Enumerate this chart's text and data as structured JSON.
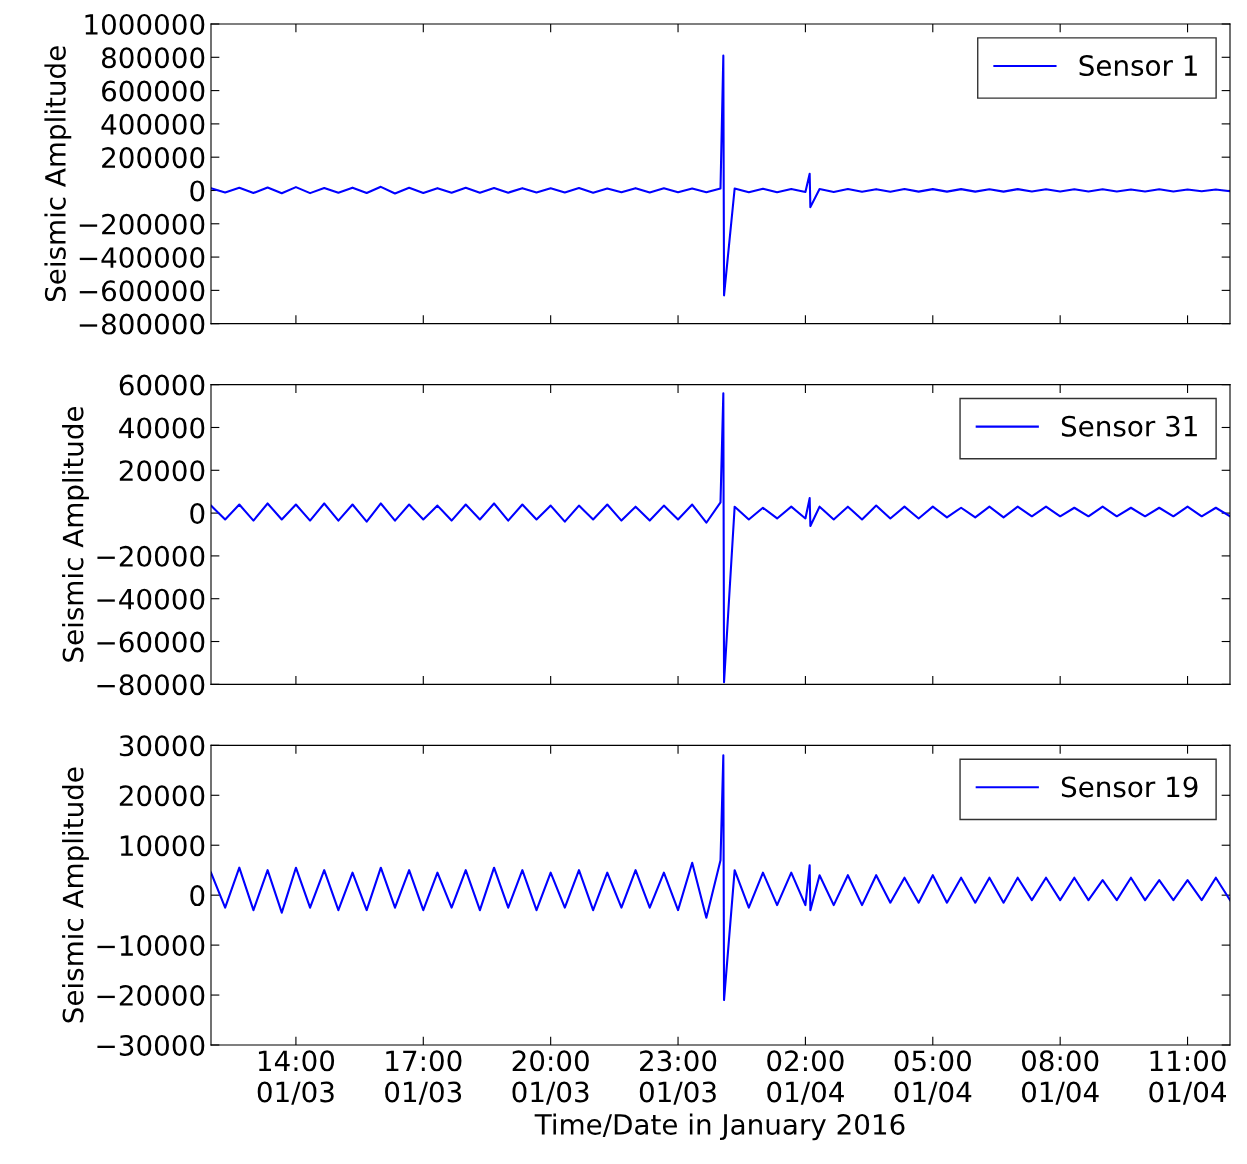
{
  "chart_data": [
    {
      "type": "line",
      "ylabel": "Seismic Amplitude",
      "legend": "top right",
      "grid": false,
      "tick_labels": "y",
      "x": [
        "2016-01-03T12:00",
        "2016-01-03T12:20",
        "2016-01-03T12:40",
        "2016-01-03T13:00",
        "2016-01-03T13:20",
        "2016-01-03T13:40",
        "2016-01-03T14:00",
        "2016-01-03T14:20",
        "2016-01-03T14:40",
        "2016-01-03T15:00",
        "2016-01-03T15:20",
        "2016-01-03T15:40",
        "2016-01-03T16:00",
        "2016-01-03T16:20",
        "2016-01-03T16:40",
        "2016-01-03T17:00",
        "2016-01-03T17:20",
        "2016-01-03T17:40",
        "2016-01-03T18:00",
        "2016-01-03T18:20",
        "2016-01-03T18:40",
        "2016-01-03T19:00",
        "2016-01-03T19:20",
        "2016-01-03T19:40",
        "2016-01-03T20:00",
        "2016-01-03T20:20",
        "2016-01-03T20:40",
        "2016-01-03T21:00",
        "2016-01-03T21:20",
        "2016-01-03T21:40",
        "2016-01-03T22:00",
        "2016-01-03T22:20",
        "2016-01-03T22:40",
        "2016-01-03T23:00",
        "2016-01-03T23:20",
        "2016-01-03T23:40",
        "2016-01-04T00:00",
        "2016-01-04T00:04",
        "2016-01-04T00:05",
        "2016-01-04T00:20",
        "2016-01-04T00:40",
        "2016-01-04T01:00",
        "2016-01-04T01:20",
        "2016-01-04T01:40",
        "2016-01-04T02:00",
        "2016-01-04T02:06",
        "2016-01-04T02:07",
        "2016-01-04T02:20",
        "2016-01-04T02:40",
        "2016-01-04T03:00",
        "2016-01-04T03:20",
        "2016-01-04T03:40",
        "2016-01-04T04:00",
        "2016-01-04T04:20",
        "2016-01-04T04:40",
        "2016-01-04T05:00",
        "2016-01-04T05:20",
        "2016-01-04T05:40",
        "2016-01-04T06:00",
        "2016-01-04T06:20",
        "2016-01-04T06:40",
        "2016-01-04T07:00",
        "2016-01-04T07:20",
        "2016-01-04T07:40",
        "2016-01-04T08:00",
        "2016-01-04T08:20",
        "2016-01-04T08:40",
        "2016-01-04T09:00",
        "2016-01-04T09:20",
        "2016-01-04T09:40",
        "2016-01-04T10:00",
        "2016-01-04T10:20",
        "2016-01-04T10:40",
        "2016-01-04T11:00",
        "2016-01-04T11:20",
        "2016-01-04T11:40",
        "2016-01-04T12:00"
      ],
      "xlim": [
        "2016-01-03T12:00",
        "2016-01-04T12:00"
      ],
      "xticks": [
        {
          "value": "2016-01-03T14:00",
          "label": null
        },
        {
          "value": "2016-01-03T17:00",
          "label": null
        },
        {
          "value": "2016-01-03T20:00",
          "label": null
        },
        {
          "value": "2016-01-03T23:00",
          "label": null
        },
        {
          "value": "2016-01-04T02:00",
          "label": null
        },
        {
          "value": "2016-01-04T05:00",
          "label": null
        },
        {
          "value": "2016-01-04T08:00",
          "label": null
        },
        {
          "value": "2016-01-04T11:00",
          "label": null
        }
      ],
      "ylim": [
        -800000,
        1000000
      ],
      "yticks": [
        {
          "value": -800000,
          "label": "−800000"
        },
        {
          "value": -600000,
          "label": "−600000"
        },
        {
          "value": -400000,
          "label": "−400000"
        },
        {
          "value": -200000,
          "label": "−200000"
        },
        0,
        200000,
        400000,
        600000,
        800000,
        1000000
      ],
      "series": [
        {
          "name": "Sensor 1",
          "color": "#0000ff",
          "values": [
            14000,
            -12000,
            16000,
            -15000,
            18000,
            -17000,
            20000,
            -16000,
            15000,
            -14000,
            17000,
            -15000,
            22000,
            -18000,
            16000,
            -15000,
            14000,
            -13000,
            16000,
            -14000,
            15000,
            -13000,
            14000,
            -12000,
            13000,
            -12000,
            15000,
            -13000,
            12000,
            -11000,
            14000,
            -12000,
            13000,
            -11000,
            12000,
            -10000,
            12000,
            810000,
            -630000,
            12000,
            -11000,
            10000,
            -10000,
            9000,
            -9000,
            100000,
            -100000,
            9000,
            -9000,
            9000,
            -8000,
            8000,
            -8000,
            9000,
            -7000,
            8000,
            -7000,
            8000,
            -7000,
            7000,
            -7000,
            8000,
            -6000,
            7000,
            -6000,
            7000,
            -6000,
            7000,
            -6000,
            6000,
            -6000,
            7000,
            -6000,
            6000,
            -5000,
            6000,
            -5000
          ]
        }
      ]
    },
    {
      "type": "line",
      "ylabel": "Seismic Amplitude",
      "legend": "top right",
      "grid": false,
      "tick_labels": "y",
      "x": [
        "2016-01-03T12:00",
        "2016-01-03T12:20",
        "2016-01-03T12:40",
        "2016-01-03T13:00",
        "2016-01-03T13:20",
        "2016-01-03T13:40",
        "2016-01-03T14:00",
        "2016-01-03T14:20",
        "2016-01-03T14:40",
        "2016-01-03T15:00",
        "2016-01-03T15:20",
        "2016-01-03T15:40",
        "2016-01-03T16:00",
        "2016-01-03T16:20",
        "2016-01-03T16:40",
        "2016-01-03T17:00",
        "2016-01-03T17:20",
        "2016-01-03T17:40",
        "2016-01-03T18:00",
        "2016-01-03T18:20",
        "2016-01-03T18:40",
        "2016-01-03T19:00",
        "2016-01-03T19:20",
        "2016-01-03T19:40",
        "2016-01-03T20:00",
        "2016-01-03T20:20",
        "2016-01-03T20:40",
        "2016-01-03T21:00",
        "2016-01-03T21:20",
        "2016-01-03T21:40",
        "2016-01-03T22:00",
        "2016-01-03T22:20",
        "2016-01-03T22:40",
        "2016-01-03T23:00",
        "2016-01-03T23:20",
        "2016-01-03T23:40",
        "2016-01-04T00:00",
        "2016-01-04T00:04",
        "2016-01-04T00:05",
        "2016-01-04T00:20",
        "2016-01-04T00:40",
        "2016-01-04T01:00",
        "2016-01-04T01:20",
        "2016-01-04T01:40",
        "2016-01-04T02:00",
        "2016-01-04T02:06",
        "2016-01-04T02:07",
        "2016-01-04T02:20",
        "2016-01-04T02:40",
        "2016-01-04T03:00",
        "2016-01-04T03:20",
        "2016-01-04T03:40",
        "2016-01-04T04:00",
        "2016-01-04T04:20",
        "2016-01-04T04:40",
        "2016-01-04T05:00",
        "2016-01-04T05:20",
        "2016-01-04T05:40",
        "2016-01-04T06:00",
        "2016-01-04T06:20",
        "2016-01-04T06:40",
        "2016-01-04T07:00",
        "2016-01-04T07:20",
        "2016-01-04T07:40",
        "2016-01-04T08:00",
        "2016-01-04T08:20",
        "2016-01-04T08:40",
        "2016-01-04T09:00",
        "2016-01-04T09:20",
        "2016-01-04T09:40",
        "2016-01-04T10:00",
        "2016-01-04T10:20",
        "2016-01-04T10:40",
        "2016-01-04T11:00",
        "2016-01-04T11:20",
        "2016-01-04T11:40",
        "2016-01-04T12:00"
      ],
      "xlim": [
        "2016-01-03T12:00",
        "2016-01-04T12:00"
      ],
      "xticks": [
        {
          "value": "2016-01-03T14:00",
          "label": null
        },
        {
          "value": "2016-01-03T17:00",
          "label": null
        },
        {
          "value": "2016-01-03T20:00",
          "label": null
        },
        {
          "value": "2016-01-03T23:00",
          "label": null
        },
        {
          "value": "2016-01-04T02:00",
          "label": null
        },
        {
          "value": "2016-01-04T05:00",
          "label": null
        },
        {
          "value": "2016-01-04T08:00",
          "label": null
        },
        {
          "value": "2016-01-04T11:00",
          "label": null
        }
      ],
      "ylim": [
        -80000,
        60000
      ],
      "yticks": [
        {
          "value": -80000,
          "label": "−80000"
        },
        {
          "value": -60000,
          "label": "−60000"
        },
        {
          "value": -40000,
          "label": "−40000"
        },
        {
          "value": -20000,
          "label": "−20000"
        },
        0,
        20000,
        40000,
        60000
      ],
      "series": [
        {
          "name": "Sensor 31",
          "color": "#0000ff",
          "values": [
            3500,
            -3000,
            4000,
            -3500,
            4500,
            -3000,
            4000,
            -3500,
            4500,
            -3500,
            4000,
            -4000,
            4500,
            -3500,
            4000,
            -3000,
            3500,
            -3500,
            4000,
            -3000,
            4500,
            -3500,
            4000,
            -3000,
            3500,
            -4000,
            3500,
            -3000,
            4000,
            -3500,
            3000,
            -3500,
            3500,
            -3000,
            4000,
            -4500,
            5000,
            56000,
            -79000,
            3000,
            -3000,
            2500,
            -2500,
            3000,
            -2500,
            7000,
            -6000,
            3000,
            -3000,
            3000,
            -3000,
            3500,
            -2500,
            3000,
            -2500,
            3000,
            -2000,
            2500,
            -2000,
            3000,
            -2000,
            3000,
            -1500,
            3000,
            -1500,
            2500,
            -1500,
            3000,
            -1500,
            2500,
            -1500,
            2500,
            -1500,
            3000,
            -1500,
            2500,
            -1500
          ]
        }
      ]
    },
    {
      "type": "line",
      "xlabel": "Time/Date in January 2016",
      "ylabel": "Seismic Amplitude",
      "legend": "top right",
      "grid": false,
      "x": [
        "2016-01-03T12:00",
        "2016-01-03T12:20",
        "2016-01-03T12:40",
        "2016-01-03T13:00",
        "2016-01-03T13:20",
        "2016-01-03T13:40",
        "2016-01-03T14:00",
        "2016-01-03T14:20",
        "2016-01-03T14:40",
        "2016-01-03T15:00",
        "2016-01-03T15:20",
        "2016-01-03T15:40",
        "2016-01-03T16:00",
        "2016-01-03T16:20",
        "2016-01-03T16:40",
        "2016-01-03T17:00",
        "2016-01-03T17:20",
        "2016-01-03T17:40",
        "2016-01-03T18:00",
        "2016-01-03T18:20",
        "2016-01-03T18:40",
        "2016-01-03T19:00",
        "2016-01-03T19:20",
        "2016-01-03T19:40",
        "2016-01-03T20:00",
        "2016-01-03T20:20",
        "2016-01-03T20:40",
        "2016-01-03T21:00",
        "2016-01-03T21:20",
        "2016-01-03T21:40",
        "2016-01-03T22:00",
        "2016-01-03T22:20",
        "2016-01-03T22:40",
        "2016-01-03T23:00",
        "2016-01-03T23:20",
        "2016-01-03T23:40",
        "2016-01-04T00:00",
        "2016-01-04T00:04",
        "2016-01-04T00:05",
        "2016-01-04T00:20",
        "2016-01-04T00:40",
        "2016-01-04T01:00",
        "2016-01-04T01:20",
        "2016-01-04T01:40",
        "2016-01-04T02:00",
        "2016-01-04T02:06",
        "2016-01-04T02:07",
        "2016-01-04T02:20",
        "2016-01-04T02:40",
        "2016-01-04T03:00",
        "2016-01-04T03:20",
        "2016-01-04T03:40",
        "2016-01-04T04:00",
        "2016-01-04T04:20",
        "2016-01-04T04:40",
        "2016-01-04T05:00",
        "2016-01-04T05:20",
        "2016-01-04T05:40",
        "2016-01-04T06:00",
        "2016-01-04T06:20",
        "2016-01-04T06:40",
        "2016-01-04T07:00",
        "2016-01-04T07:20",
        "2016-01-04T07:40",
        "2016-01-04T08:00",
        "2016-01-04T08:20",
        "2016-01-04T08:40",
        "2016-01-04T09:00",
        "2016-01-04T09:20",
        "2016-01-04T09:40",
        "2016-01-04T10:00",
        "2016-01-04T10:20",
        "2016-01-04T10:40",
        "2016-01-04T11:00",
        "2016-01-04T11:20",
        "2016-01-04T11:40",
        "2016-01-04T12:00"
      ],
      "xlim": [
        "2016-01-03T12:00",
        "2016-01-04T12:00"
      ],
      "xticks": [
        {
          "value": "2016-01-03T14:00",
          "label": "14:00\n01/03"
        },
        {
          "value": "2016-01-03T17:00",
          "label": "17:00\n01/03"
        },
        {
          "value": "2016-01-03T20:00",
          "label": "20:00\n01/03"
        },
        {
          "value": "2016-01-03T23:00",
          "label": "23:00\n01/03"
        },
        {
          "value": "2016-01-04T02:00",
          "label": "02:00\n01/04"
        },
        {
          "value": "2016-01-04T05:00",
          "label": "05:00\n01/04"
        },
        {
          "value": "2016-01-04T08:00",
          "label": "08:00\n01/04"
        },
        {
          "value": "2016-01-04T11:00",
          "label": "11:00\n01/04"
        }
      ],
      "ylim": [
        -30000,
        30000
      ],
      "yticks": [
        {
          "value": -30000,
          "label": "−30000"
        },
        {
          "value": -20000,
          "label": "−20000"
        },
        {
          "value": -10000,
          "label": "−10000"
        },
        0,
        10000,
        20000,
        30000
      ],
      "series": [
        {
          "name": "Sensor 19",
          "color": "#0000ff",
          "values": [
            4500,
            -2500,
            5500,
            -3000,
            5000,
            -3500,
            5500,
            -2500,
            5000,
            -3000,
            4500,
            -3000,
            5500,
            -2500,
            5000,
            -3000,
            4500,
            -2500,
            5000,
            -3000,
            5500,
            -2500,
            5000,
            -3000,
            4500,
            -2500,
            5000,
            -3000,
            4500,
            -2500,
            5000,
            -2500,
            4500,
            -3000,
            6500,
            -4500,
            7000,
            28000,
            -21000,
            5000,
            -2500,
            4500,
            -2000,
            4500,
            -2000,
            6000,
            -3000,
            4000,
            -2000,
            4000,
            -2000,
            4000,
            -1500,
            3500,
            -1500,
            4000,
            -1500,
            3500,
            -1500,
            3500,
            -1500,
            3500,
            -1000,
            3500,
            -1000,
            3500,
            -1000,
            3000,
            -1000,
            3500,
            -1000,
            3000,
            -1000,
            3000,
            -1000,
            3500,
            -1000
          ]
        }
      ]
    }
  ]
}
